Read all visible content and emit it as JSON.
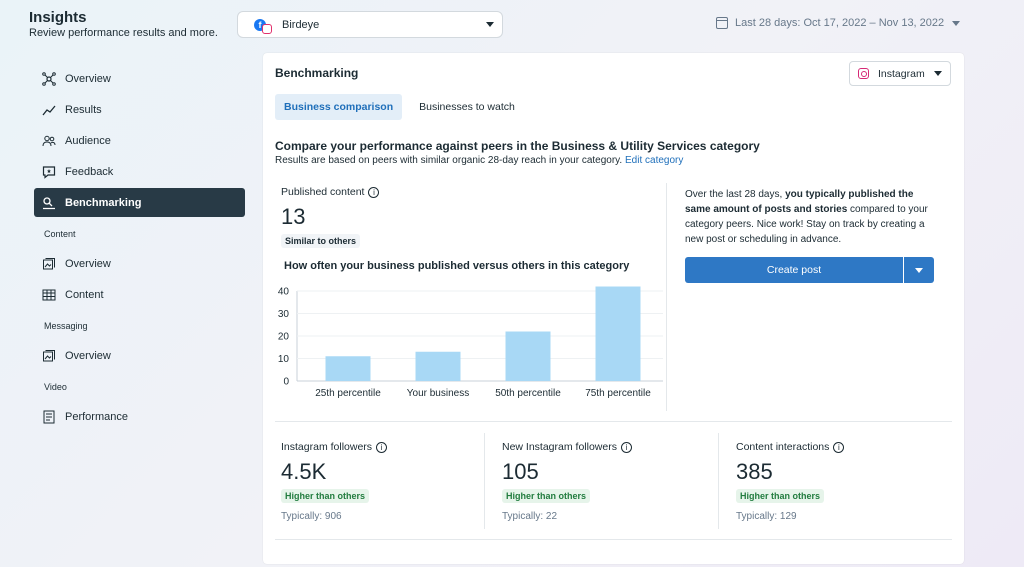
{
  "header": {
    "title": "Insights",
    "subtitle": "Review performance results and more.",
    "account_label": "Birdeye",
    "date_range": "Last 28 days: Oct 17, 2022 – Nov 13, 2022"
  },
  "sidebar": {
    "items": [
      {
        "label": "Overview",
        "icon": "overview-icon"
      },
      {
        "label": "Results",
        "icon": "results-icon"
      },
      {
        "label": "Audience",
        "icon": "audience-icon"
      },
      {
        "label": "Feedback",
        "icon": "feedback-icon"
      },
      {
        "label": "Benchmarking",
        "icon": "benchmarking-icon",
        "active": true
      }
    ],
    "sections": [
      {
        "title": "Content",
        "items": [
          {
            "label": "Overview"
          },
          {
            "label": "Content"
          }
        ]
      },
      {
        "title": "Messaging",
        "items": [
          {
            "label": "Overview"
          }
        ]
      },
      {
        "title": "Video",
        "items": [
          {
            "label": "Performance"
          }
        ]
      }
    ]
  },
  "panel": {
    "title": "Benchmarking",
    "platform_select": "Instagram",
    "tabs": [
      {
        "label": "Business comparison",
        "active": true
      },
      {
        "label": "Businesses to watch",
        "active": false
      }
    ],
    "compare_heading": "Compare your performance against peers in the Business & Utility Services category",
    "compare_sub": "Results are based on peers with similar organic 28-day reach in your category.",
    "edit_category": "Edit category",
    "published": {
      "label": "Published content",
      "value": "13",
      "badge": "Similar to others"
    },
    "chart_title": "How often your business published versus others in this category",
    "recommendation": {
      "prefix": "Over the last 28 days,",
      "bold": "you typically published the same amount of posts and stories",
      "suffix": "compared to your category peers. Nice work! Stay on track by creating a new post or scheduling in advance."
    },
    "create_button": "Create post",
    "metrics": [
      {
        "label": "Instagram followers",
        "value": "4.5K",
        "badge": "Higher than others",
        "typically": "Typically: 906"
      },
      {
        "label": "New Instagram followers",
        "value": "105",
        "badge": "Higher than others",
        "typically": "Typically: 22"
      },
      {
        "label": "Content interactions",
        "value": "385",
        "badge": "Higher than others",
        "typically": "Typically: 129"
      }
    ]
  },
  "colors": {
    "accent": "#2e78c5",
    "bar": "#a8d8f5",
    "active_nav": "#283a46",
    "good_badge": "#e6f4ea"
  },
  "chart_data": {
    "type": "bar",
    "categories": [
      "25th percentile",
      "Your business",
      "50th percentile",
      "75th percentile"
    ],
    "values": [
      11,
      13,
      22,
      42
    ],
    "ylim": [
      0,
      40
    ],
    "yticks": [
      0,
      10,
      20,
      30,
      40
    ],
    "grid": true
  }
}
